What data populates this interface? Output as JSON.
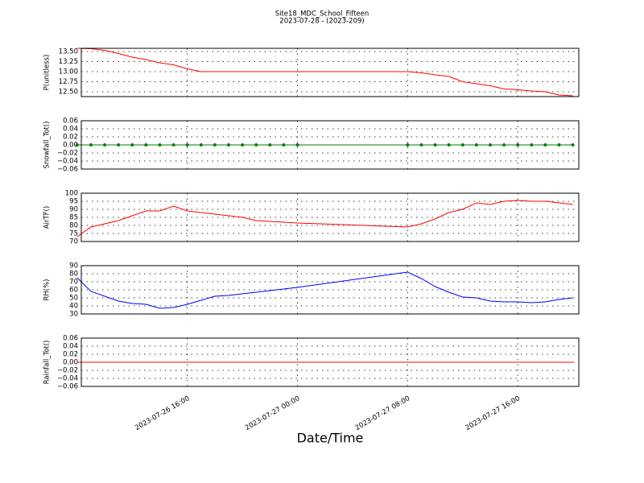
{
  "title": "Site18_MDC_School_Fifteen",
  "subtitle": "2023-07-28 - (2023-209)",
  "xlabel": "Date/Time",
  "chart_data": [
    {
      "type": "line",
      "ylabel": "P(unitless)",
      "color": "#ff0000",
      "marker": false,
      "grid": true,
      "x": [
        "2023-07-26 08:00",
        "2023-07-26 09:00",
        "2023-07-26 10:00",
        "2023-07-26 11:00",
        "2023-07-26 12:00",
        "2023-07-26 13:00",
        "2023-07-26 14:00",
        "2023-07-26 15:00",
        "2023-07-26 16:00",
        "2023-07-26 17:00",
        "2023-07-26 18:00",
        "2023-07-26 19:00",
        "2023-07-26 20:00",
        "2023-07-26 21:00",
        "2023-07-26 22:00",
        "2023-07-26 23:00",
        "2023-07-27 00:00",
        "2023-07-27 08:00",
        "2023-07-27 09:00",
        "2023-07-27 10:00",
        "2023-07-27 11:00",
        "2023-07-27 12:00",
        "2023-07-27 13:00",
        "2023-07-27 14:00",
        "2023-07-27 15:00",
        "2023-07-27 16:00",
        "2023-07-27 17:00",
        "2023-07-27 18:00",
        "2023-07-27 19:00",
        "2023-07-27 20:00"
      ],
      "values": [
        13.58,
        13.57,
        13.53,
        13.45,
        13.36,
        13.3,
        13.22,
        13.17,
        13.07,
        13.0,
        13.0,
        13.0,
        13.0,
        13.0,
        13.0,
        13.0,
        13.0,
        13.0,
        12.97,
        12.92,
        12.88,
        12.75,
        12.7,
        12.65,
        12.57,
        12.55,
        12.52,
        12.5,
        12.42,
        12.4
      ],
      "xlim": [
        "2023-07-26 08:18",
        "2023-07-27 20:26"
      ],
      "xticks": [
        "2023-07-26 16:00",
        "2023-07-27 00:00",
        "2023-07-27 08:00",
        "2023-07-27 16:00"
      ],
      "ylim": [
        12.38,
        13.58
      ],
      "yticks": [
        {
          "value": 12.5,
          "label": "12.50"
        },
        {
          "value": 12.75,
          "label": "12.75"
        },
        {
          "value": 13.0,
          "label": "13.00"
        },
        {
          "value": 13.25,
          "label": "13.25"
        },
        {
          "value": 13.5,
          "label": "13.50"
        }
      ]
    },
    {
      "type": "line",
      "ylabel": "Snowfall_Tot()",
      "color": "#008000",
      "marker": true,
      "grid": true,
      "x": [
        "2023-07-26 08:00",
        "2023-07-26 09:00",
        "2023-07-26 10:00",
        "2023-07-26 11:00",
        "2023-07-26 12:00",
        "2023-07-26 13:00",
        "2023-07-26 14:00",
        "2023-07-26 15:00",
        "2023-07-26 16:00",
        "2023-07-26 17:00",
        "2023-07-26 18:00",
        "2023-07-26 19:00",
        "2023-07-26 20:00",
        "2023-07-26 21:00",
        "2023-07-26 22:00",
        "2023-07-26 23:00",
        "2023-07-27 00:00",
        "2023-07-27 08:00",
        "2023-07-27 09:00",
        "2023-07-27 10:00",
        "2023-07-27 11:00",
        "2023-07-27 12:00",
        "2023-07-27 13:00",
        "2023-07-27 14:00",
        "2023-07-27 15:00",
        "2023-07-27 16:00",
        "2023-07-27 17:00",
        "2023-07-27 18:00",
        "2023-07-27 19:00",
        "2023-07-27 20:00"
      ],
      "values": [
        0,
        0,
        0,
        0,
        0,
        0,
        0,
        0,
        0,
        0,
        0,
        0,
        0,
        0,
        0,
        0,
        0,
        0,
        0,
        0,
        0,
        0,
        0,
        0,
        0,
        0,
        0,
        0,
        0,
        0
      ],
      "xlim": [
        "2023-07-26 08:18",
        "2023-07-27 20:26"
      ],
      "xticks": [
        "2023-07-26 16:00",
        "2023-07-27 00:00",
        "2023-07-27 08:00",
        "2023-07-27 16:00"
      ],
      "ylim": [
        -0.06,
        0.06
      ],
      "yticks": [
        {
          "value": -0.06,
          "label": "−0.06"
        },
        {
          "value": -0.04,
          "label": "−0.04"
        },
        {
          "value": -0.02,
          "label": "−0.02"
        },
        {
          "value": 0,
          "label": "0.00"
        },
        {
          "value": 0.02,
          "label": "0.02"
        },
        {
          "value": 0.04,
          "label": "0.04"
        },
        0.06
      ]
    },
    {
      "type": "line",
      "ylabel": "AirTF()",
      "color": "#ff0000",
      "marker": false,
      "grid": true,
      "x": [
        "2023-07-26 08:00",
        "2023-07-26 09:00",
        "2023-07-26 10:00",
        "2023-07-26 11:00",
        "2023-07-26 12:00",
        "2023-07-26 13:00",
        "2023-07-26 14:00",
        "2023-07-26 15:00",
        "2023-07-26 16:00",
        "2023-07-26 17:00",
        "2023-07-26 18:00",
        "2023-07-26 19:00",
        "2023-07-26 20:00",
        "2023-07-26 21:00",
        "2023-07-26 22:00",
        "2023-07-26 23:00",
        "2023-07-27 00:00",
        "2023-07-27 08:00",
        "2023-07-27 09:00",
        "2023-07-27 10:00",
        "2023-07-27 11:00",
        "2023-07-27 12:00",
        "2023-07-27 13:00",
        "2023-07-27 14:00",
        "2023-07-27 15:00",
        "2023-07-27 16:00",
        "2023-07-27 17:00",
        "2023-07-27 18:00",
        "2023-07-27 19:00",
        "2023-07-27 20:00"
      ],
      "values": [
        73,
        79,
        81,
        83,
        86,
        89,
        89,
        92,
        89,
        88,
        87,
        86,
        85,
        83,
        82.5,
        82,
        81.5,
        79,
        81,
        84,
        88,
        90,
        94,
        93,
        95,
        95.5,
        95,
        95,
        94,
        93
      ],
      "xlim": [
        "2023-07-26 08:18",
        "2023-07-27 20:26"
      ],
      "xticks": [
        "2023-07-26 16:00",
        "2023-07-27 00:00",
        "2023-07-27 08:00",
        "2023-07-27 16:00"
      ],
      "ylim": [
        70,
        100
      ],
      "yticks": [
        70,
        75,
        80,
        85,
        90,
        95,
        100
      ]
    },
    {
      "type": "line",
      "ylabel": "RH(%)",
      "color": "#0000ff",
      "marker": false,
      "grid": true,
      "x": [
        "2023-07-26 08:00",
        "2023-07-26 09:00",
        "2023-07-26 10:00",
        "2023-07-26 11:00",
        "2023-07-26 12:00",
        "2023-07-26 13:00",
        "2023-07-26 14:00",
        "2023-07-26 15:00",
        "2023-07-26 16:00",
        "2023-07-26 17:00",
        "2023-07-26 18:00",
        "2023-07-26 19:00",
        "2023-07-26 20:00",
        "2023-07-26 21:00",
        "2023-07-26 22:00",
        "2023-07-26 23:00",
        "2023-07-27 00:00",
        "2023-07-27 08:00",
        "2023-07-27 09:00",
        "2023-07-27 10:00",
        "2023-07-27 11:00",
        "2023-07-27 12:00",
        "2023-07-27 13:00",
        "2023-07-27 14:00",
        "2023-07-27 15:00",
        "2023-07-27 16:00",
        "2023-07-27 17:00",
        "2023-07-27 18:00",
        "2023-07-27 19:00",
        "2023-07-27 20:00"
      ],
      "values": [
        75,
        58,
        52,
        46,
        43,
        42,
        37,
        38,
        42,
        47,
        52,
        53,
        55,
        57,
        59,
        61,
        63,
        82,
        74,
        64,
        57,
        51,
        50,
        46,
        45,
        45,
        44,
        45,
        48,
        50
      ],
      "xlim": [
        "2023-07-26 08:18",
        "2023-07-27 20:26"
      ],
      "xticks": [
        "2023-07-26 16:00",
        "2023-07-27 00:00",
        "2023-07-27 08:00",
        "2023-07-27 16:00"
      ],
      "ylim": [
        30,
        90
      ],
      "yticks": [
        30,
        40,
        50,
        60,
        70,
        80,
        90
      ]
    },
    {
      "type": "line",
      "ylabel": "Rainfall_Tot()",
      "color": "#ff0000",
      "marker": false,
      "grid": true,
      "x": [
        "2023-07-26 08:00",
        "2023-07-26 09:00",
        "2023-07-26 10:00",
        "2023-07-26 11:00",
        "2023-07-26 12:00",
        "2023-07-26 13:00",
        "2023-07-26 14:00",
        "2023-07-26 15:00",
        "2023-07-26 16:00",
        "2023-07-26 17:00",
        "2023-07-26 18:00",
        "2023-07-26 19:00",
        "2023-07-26 20:00",
        "2023-07-26 21:00",
        "2023-07-26 22:00",
        "2023-07-26 23:00",
        "2023-07-27 00:00",
        "2023-07-27 08:00",
        "2023-07-27 09:00",
        "2023-07-27 10:00",
        "2023-07-27 11:00",
        "2023-07-27 12:00",
        "2023-07-27 13:00",
        "2023-07-27 14:00",
        "2023-07-27 15:00",
        "2023-07-27 16:00",
        "2023-07-27 17:00",
        "2023-07-27 18:00",
        "2023-07-27 19:00",
        "2023-07-27 20:00"
      ],
      "values": [
        0,
        0,
        0,
        0,
        0,
        0,
        0,
        0,
        0,
        0,
        0,
        0,
        0,
        0,
        0,
        0,
        0,
        0,
        0,
        0,
        0,
        0,
        0,
        0,
        0,
        0,
        0,
        0,
        0,
        0
      ],
      "xlim": [
        "2023-07-26 08:18",
        "2023-07-27 20:26"
      ],
      "xticks": [
        "2023-07-26 16:00",
        "2023-07-27 00:00",
        "2023-07-27 08:00",
        "2023-07-27 16:00"
      ],
      "ylim": [
        -0.06,
        0.06
      ],
      "yticks": [
        {
          "value": -0.06,
          "label": "−0.06"
        },
        {
          "value": -0.04,
          "label": "−0.04"
        },
        {
          "value": -0.02,
          "label": "−0.02"
        },
        {
          "value": 0,
          "label": "0.00"
        },
        {
          "value": 0.02,
          "label": "0.02"
        },
        {
          "value": 0.04,
          "label": "0.04"
        },
        0.06
      ]
    }
  ]
}
